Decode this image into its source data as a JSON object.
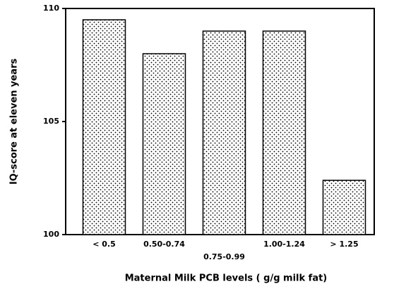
{
  "chart_data": {
    "type": "bar",
    "categories": [
      "< 0.5",
      "0.50-0.74",
      "0.75-0.99",
      "1.00-1.24",
      "> 1.25"
    ],
    "values": [
      109.5,
      108,
      109,
      109,
      102.4
    ],
    "color": "#000000",
    "ylim": [
      100,
      110
    ],
    "yticks": [
      100,
      105,
      110
    ],
    "y_label": "IQ-score at eleven years",
    "x_label": "Maternal Milk PCB levels ( g/g milk fat)"
  }
}
